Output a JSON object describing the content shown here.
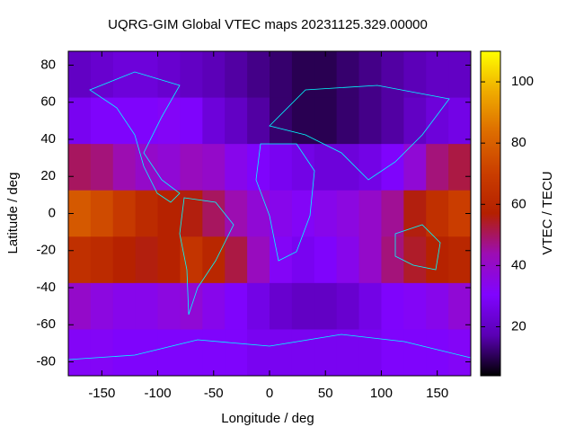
{
  "chart_data": {
    "type": "heatmap",
    "title": "UQRG-GIM Global VTEC maps 20231125.329.00000",
    "xlabel": "Longitude / deg",
    "ylabel": "Latitude / deg",
    "colorbar_label": "VTEC / TECU",
    "x": [
      -170,
      -150,
      -130,
      -110,
      -90,
      -70,
      -50,
      -30,
      -10,
      10,
      30,
      50,
      70,
      90,
      110,
      130,
      150,
      170
    ],
    "y": [
      75,
      50,
      25,
      0,
      -25,
      -50,
      -75
    ],
    "z": [
      [
        20,
        22,
        24,
        24,
        22,
        20,
        18,
        16,
        14,
        12,
        10,
        10,
        12,
        14,
        16,
        18,
        20,
        20
      ],
      [
        28,
        30,
        30,
        30,
        32,
        30,
        24,
        20,
        16,
        12,
        10,
        10,
        12,
        14,
        16,
        20,
        24,
        26
      ],
      [
        50,
        48,
        44,
        40,
        38,
        42,
        40,
        34,
        30,
        28,
        26,
        24,
        24,
        26,
        30,
        38,
        48,
        52
      ],
      [
        78,
        74,
        68,
        62,
        58,
        56,
        50,
        44,
        38,
        34,
        32,
        34,
        36,
        40,
        46,
        56,
        64,
        70
      ],
      [
        64,
        62,
        58,
        56,
        58,
        66,
        60,
        52,
        42,
        32,
        28,
        30,
        34,
        40,
        48,
        54,
        58,
        60
      ],
      [
        40,
        36,
        34,
        34,
        36,
        38,
        34,
        30,
        26,
        22,
        20,
        20,
        22,
        26,
        30,
        32,
        34,
        38
      ],
      [
        32,
        32,
        30,
        30,
        30,
        30,
        30,
        30,
        28,
        28,
        28,
        28,
        28,
        28,
        30,
        30,
        30,
        32
      ]
    ],
    "xlim": [
      -180,
      180
    ],
    "ylim": [
      -87.5,
      87.5
    ],
    "clim": [
      4,
      110
    ],
    "xticks": [
      -150,
      -100,
      -50,
      0,
      50,
      100,
      150
    ],
    "yticks": [
      -80,
      -60,
      -40,
      -20,
      0,
      20,
      40,
      60,
      80
    ],
    "cticks": [
      20,
      40,
      60,
      80,
      100
    ],
    "colormap": [
      "#000000",
      "#5a00b4",
      "#8004ff",
      "#9c0db4",
      "#b42000",
      "#ca3e00",
      "#dd6c00",
      "#efab00",
      "#ffff00"
    ]
  }
}
